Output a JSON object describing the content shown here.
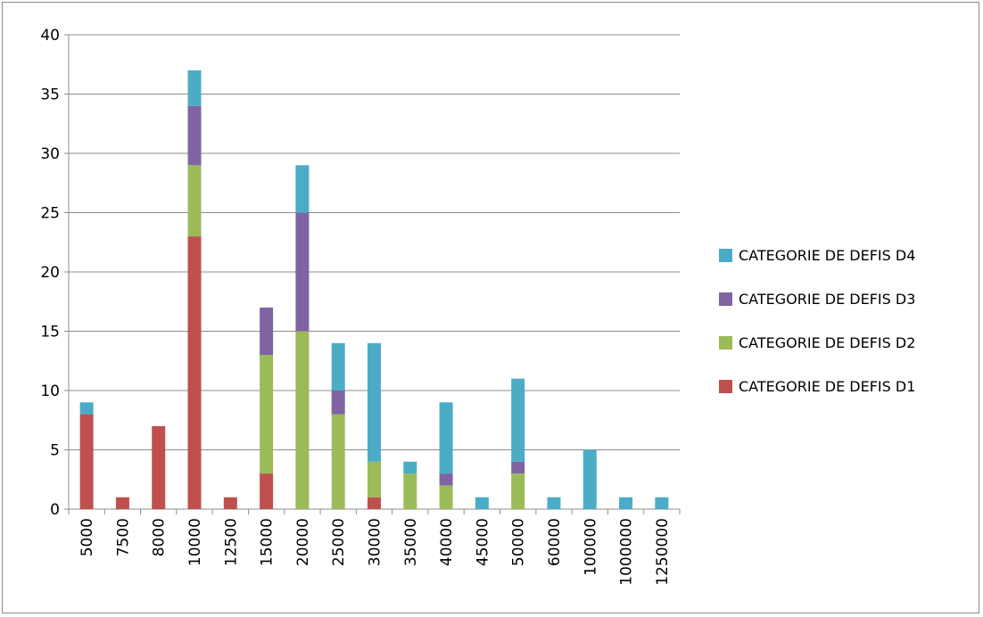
{
  "chart_data": {
    "type": "bar",
    "stacked": true,
    "title": "",
    "xlabel": "",
    "ylabel": "",
    "ylim": [
      0,
      40
    ],
    "yticks": [
      0,
      5,
      10,
      15,
      20,
      25,
      30,
      35,
      40
    ],
    "grid": true,
    "legend_position": "right",
    "categories": [
      "5000",
      "7500",
      "8000",
      "10000",
      "12500",
      "15000",
      "20000",
      "25000",
      "30000",
      "35000",
      "40000",
      "45000",
      "50000",
      "60000",
      "100000",
      "1000000",
      "1250000"
    ],
    "series": [
      {
        "name": "CATEGORIE DE DEFIS D1",
        "color": "#c0504d",
        "values": [
          8,
          1,
          7,
          23,
          1,
          3,
          0,
          0,
          1,
          0,
          0,
          0,
          0,
          0,
          0,
          0,
          0
        ]
      },
      {
        "name": "CATEGORIE DE DEFIS D2",
        "color": "#9bbb59",
        "values": [
          0,
          0,
          0,
          6,
          0,
          10,
          15,
          8,
          3,
          3,
          2,
          0,
          3,
          0,
          0,
          0,
          0
        ]
      },
      {
        "name": "CATEGORIE DE DEFIS D3",
        "color": "#8064a2",
        "values": [
          0,
          0,
          0,
          5,
          0,
          4,
          10,
          2,
          0,
          0,
          1,
          0,
          1,
          0,
          0,
          0,
          0
        ]
      },
      {
        "name": "CATEGORIE DE DEFIS D4",
        "color": "#4bacc6",
        "values": [
          1,
          0,
          0,
          3,
          0,
          0,
          4,
          4,
          10,
          1,
          6,
          1,
          7,
          1,
          5,
          1,
          1
        ]
      }
    ],
    "legend_order": [
      "CATEGORIE DE DEFIS D4",
      "CATEGORIE DE DEFIS D3",
      "CATEGORIE DE DEFIS D2",
      "CATEGORIE DE DEFIS D1"
    ]
  }
}
